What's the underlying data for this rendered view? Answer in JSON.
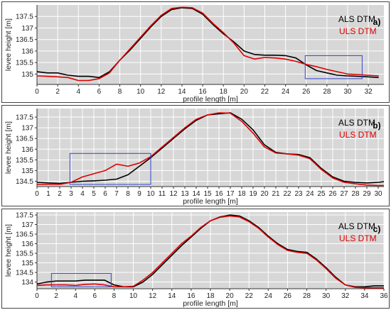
{
  "colors": {
    "als": "#000000",
    "uls": "#dd0000",
    "box": "#3344cc",
    "plot_bg": "#d7d7d7",
    "grid": "#ffffff"
  },
  "chart_data": [
    {
      "type": "line",
      "panel_label": "a)",
      "xlabel": "profile length [m]",
      "ylabel": "levee height [m]",
      "xlim": [
        0,
        33.5
      ],
      "ylim": [
        134.55,
        138.0
      ],
      "xticks": [
        0,
        2,
        4,
        6,
        8,
        10,
        12,
        14,
        16,
        18,
        20,
        22,
        24,
        26,
        28,
        30,
        32
      ],
      "yticks": [
        135,
        135.5,
        136,
        136.5,
        137,
        137.5
      ],
      "ytick_labels": [
        "135",
        "135.5",
        "136",
        "136.5",
        "137",
        "137.5"
      ],
      "grid": true,
      "legend": {
        "position": "top-right",
        "entries": [
          "ALS DTM",
          "ULS DTM"
        ]
      },
      "highlight_box": {
        "x": [
          25.9,
          31.4
        ],
        "y": [
          134.8,
          135.8
        ]
      },
      "series": [
        {
          "name": "ALS DTM",
          "x": [
            0,
            1,
            2,
            3,
            4,
            5,
            6,
            7,
            8,
            9,
            10,
            11,
            12,
            13,
            14,
            15,
            16,
            17,
            18,
            19,
            20,
            21,
            22,
            23,
            24,
            25,
            26,
            27,
            28,
            29,
            30,
            31,
            32,
            33
          ],
          "y": [
            135.1,
            135.05,
            135.05,
            134.95,
            134.9,
            134.9,
            134.85,
            135.1,
            135.6,
            136.05,
            136.55,
            137.05,
            137.5,
            137.8,
            137.88,
            137.85,
            137.6,
            137.15,
            136.75,
            136.4,
            136.0,
            135.85,
            135.82,
            135.82,
            135.8,
            135.7,
            135.4,
            135.15,
            135.05,
            134.95,
            134.92,
            134.9,
            134.88,
            134.85
          ]
        },
        {
          "name": "ULS DTM",
          "x": [
            0,
            1,
            2,
            3,
            4,
            5,
            6,
            7,
            8,
            9,
            10,
            11,
            12,
            13,
            14,
            15,
            16,
            17,
            18,
            19,
            20,
            21,
            22,
            23,
            24,
            25,
            26,
            27,
            28,
            29,
            30,
            31,
            32,
            33
          ],
          "y": [
            134.92,
            134.9,
            134.88,
            134.85,
            134.72,
            134.72,
            134.8,
            135.05,
            135.6,
            136.1,
            136.6,
            137.1,
            137.55,
            137.85,
            137.9,
            137.88,
            137.65,
            137.2,
            136.8,
            136.35,
            135.8,
            135.65,
            135.72,
            135.7,
            135.65,
            135.55,
            135.42,
            135.32,
            135.2,
            135.1,
            135.0,
            134.98,
            134.95,
            134.92
          ]
        }
      ]
    },
    {
      "type": "line",
      "panel_label": "b)",
      "xlabel": "profile length [m]",
      "ylabel": "levee height [m]",
      "xlim": [
        0,
        30.5
      ],
      "ylim": [
        134.25,
        137.9
      ],
      "xticks": [
        0,
        1,
        2,
        3,
        4,
        5,
        6,
        7,
        8,
        9,
        10,
        11,
        12,
        13,
        14,
        15,
        16,
        17,
        18,
        19,
        20,
        21,
        22,
        23,
        24,
        25,
        26,
        27,
        28,
        29,
        30
      ],
      "yticks": [
        134.5,
        135,
        135.5,
        136,
        136.5,
        137,
        137.5
      ],
      "ytick_labels": [
        "134.5",
        "135",
        "135.5",
        "136",
        "136.5",
        "137",
        "137.5"
      ],
      "grid": true,
      "legend": {
        "position": "top-right",
        "entries": [
          "ALS DTM",
          "ULS DTM"
        ]
      },
      "highlight_box": {
        "x": [
          2.9,
          10.0
        ],
        "y": [
          134.35,
          135.8
        ]
      },
      "series": [
        {
          "name": "ALS DTM",
          "x": [
            0,
            1,
            2,
            3,
            4,
            5,
            6,
            7,
            8,
            9,
            10,
            11,
            12,
            13,
            14,
            15,
            16,
            17,
            18,
            19,
            20,
            21,
            22,
            23,
            24,
            25,
            26,
            27,
            28,
            29,
            30,
            30.5
          ],
          "y": [
            134.45,
            134.42,
            134.4,
            134.45,
            134.5,
            134.52,
            134.55,
            134.6,
            134.8,
            135.2,
            135.6,
            136.05,
            136.5,
            136.95,
            137.35,
            137.6,
            137.65,
            137.7,
            137.4,
            136.9,
            136.2,
            135.85,
            135.78,
            135.75,
            135.6,
            135.1,
            134.7,
            134.5,
            134.45,
            134.42,
            134.45,
            134.48
          ]
        },
        {
          "name": "ULS DTM",
          "x": [
            0,
            1,
            2,
            3,
            4,
            5,
            6,
            7,
            8,
            9,
            10,
            11,
            12,
            13,
            14,
            15,
            16,
            17,
            18,
            19,
            20,
            21,
            22,
            23,
            24,
            25,
            26,
            27,
            28,
            29,
            30,
            30.5
          ],
          "y": [
            134.35,
            134.35,
            134.35,
            134.45,
            134.7,
            134.85,
            135.0,
            135.3,
            135.2,
            135.35,
            135.65,
            136.1,
            136.55,
            137.0,
            137.4,
            137.6,
            137.7,
            137.68,
            137.3,
            136.75,
            136.1,
            135.82,
            135.78,
            135.72,
            135.55,
            135.05,
            134.65,
            134.45,
            134.38,
            134.32,
            134.3,
            134.3
          ]
        }
      ]
    },
    {
      "type": "line",
      "panel_label": "c)",
      "xlabel": "profile length [m]",
      "ylabel": "levee height [m]",
      "xlim": [
        0,
        36
      ],
      "ylim": [
        133.65,
        137.65
      ],
      "xticks": [
        0,
        2,
        4,
        6,
        8,
        10,
        12,
        14,
        16,
        18,
        20,
        22,
        24,
        26,
        28,
        30,
        32,
        34,
        36
      ],
      "yticks": [
        134,
        134.5,
        135,
        135.5,
        136,
        136.5,
        137,
        137.5
      ],
      "ytick_labels": [
        "134",
        "134.5",
        "135",
        "135.5",
        "136",
        "136.5",
        "137",
        "137.5"
      ],
      "grid": true,
      "legend": {
        "position": "top-right",
        "entries": [
          "ALS DTM",
          "ULS DTM"
        ]
      },
      "highlight_box": {
        "x": [
          1.5,
          7.7
        ],
        "y": [
          133.75,
          134.45
        ]
      },
      "series": [
        {
          "name": "ALS DTM",
          "x": [
            0,
            1,
            2,
            3,
            4,
            5,
            6,
            7,
            8,
            9,
            10,
            11,
            12,
            13,
            14,
            15,
            16,
            17,
            18,
            19,
            20,
            21,
            22,
            23,
            24,
            25,
            26,
            27,
            28,
            29,
            30,
            31,
            32,
            33,
            34,
            35,
            36
          ],
          "y": [
            133.9,
            134.0,
            134.05,
            134.05,
            134.05,
            134.1,
            134.1,
            134.1,
            133.85,
            133.75,
            133.75,
            134.0,
            134.4,
            134.9,
            135.4,
            135.9,
            136.35,
            136.8,
            137.2,
            137.4,
            137.5,
            137.45,
            137.2,
            136.85,
            136.4,
            136.0,
            135.7,
            135.6,
            135.55,
            135.2,
            134.75,
            134.25,
            133.85,
            133.75,
            133.75,
            133.8,
            133.8
          ]
        },
        {
          "name": "ULS DTM",
          "x": [
            0,
            1,
            2,
            3,
            4,
            5,
            6,
            7,
            8,
            9,
            10,
            11,
            12,
            13,
            14,
            15,
            16,
            17,
            18,
            19,
            20,
            21,
            22,
            23,
            24,
            25,
            26,
            27,
            28,
            29,
            30,
            31,
            32,
            33,
            34,
            35,
            36
          ],
          "y": [
            133.82,
            133.85,
            133.85,
            133.85,
            133.82,
            133.88,
            133.9,
            133.85,
            133.75,
            133.75,
            133.78,
            134.1,
            134.5,
            135.0,
            135.5,
            136.0,
            136.4,
            136.85,
            137.2,
            137.38,
            137.45,
            137.4,
            137.15,
            136.8,
            136.35,
            135.95,
            135.65,
            135.55,
            135.5,
            135.15,
            134.7,
            134.2,
            133.85,
            133.72,
            133.7,
            133.7,
            133.7
          ]
        }
      ]
    }
  ]
}
